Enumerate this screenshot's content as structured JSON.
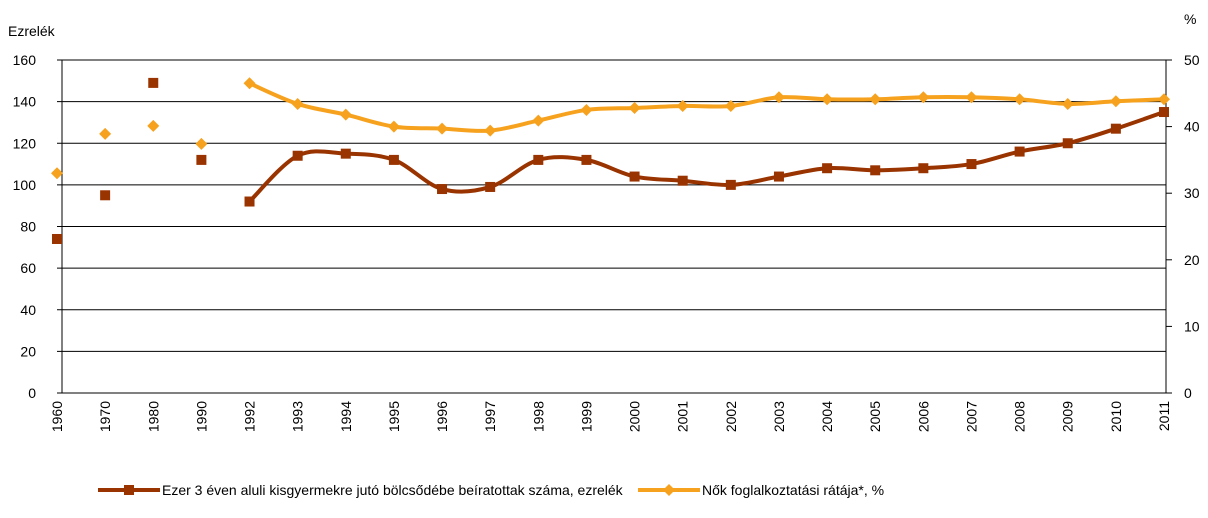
{
  "chart_data": {
    "type": "line",
    "y_label": "Ezrelék",
    "y2_label": "%",
    "categories": [
      "1960",
      "1970",
      "1980",
      "1990",
      "1992",
      "1993",
      "1994",
      "1995",
      "1996",
      "1997",
      "1998",
      "1999",
      "2000",
      "2001",
      "2002",
      "2003",
      "2004",
      "2005",
      "2006",
      "2007",
      "2008",
      "2009",
      "2010",
      "2011"
    ],
    "line_start": "1992",
    "series": [
      {
        "name": "Ezer 3 éven aluli kisgyermekre jutó bölcsődébe beíratottak száma, ezrelék",
        "color": "#993300",
        "marker": "square",
        "values": [
          74,
          95,
          149,
          112,
          92,
          114,
          115,
          112,
          98,
          99,
          112,
          112,
          104,
          102,
          100,
          104,
          108,
          107,
          108,
          110,
          116,
          120,
          127,
          135
        ]
      },
      {
        "name": "Nők foglalkoztatási rátája*, %",
        "color": "#f7a21e",
        "marker": "diamond",
        "axis": "y2",
        "values": [
          33,
          38.9,
          40.1,
          37.4,
          46.5,
          43.4,
          41.8,
          40,
          39.7,
          39.4,
          40.9,
          42.5,
          42.8,
          43.1,
          43.1,
          44.4,
          44.1,
          44.1,
          44.4,
          44.4,
          44.1,
          43.4,
          43.8,
          44.1
        ]
      }
    ],
    "ylim": [
      0,
      160
    ],
    "yticks": [
      0,
      20,
      40,
      60,
      80,
      100,
      120,
      140,
      160
    ],
    "y2lim": [
      0,
      50
    ],
    "y2ticks": [
      0,
      10,
      20,
      30,
      40,
      50
    ],
    "grid": true
  }
}
